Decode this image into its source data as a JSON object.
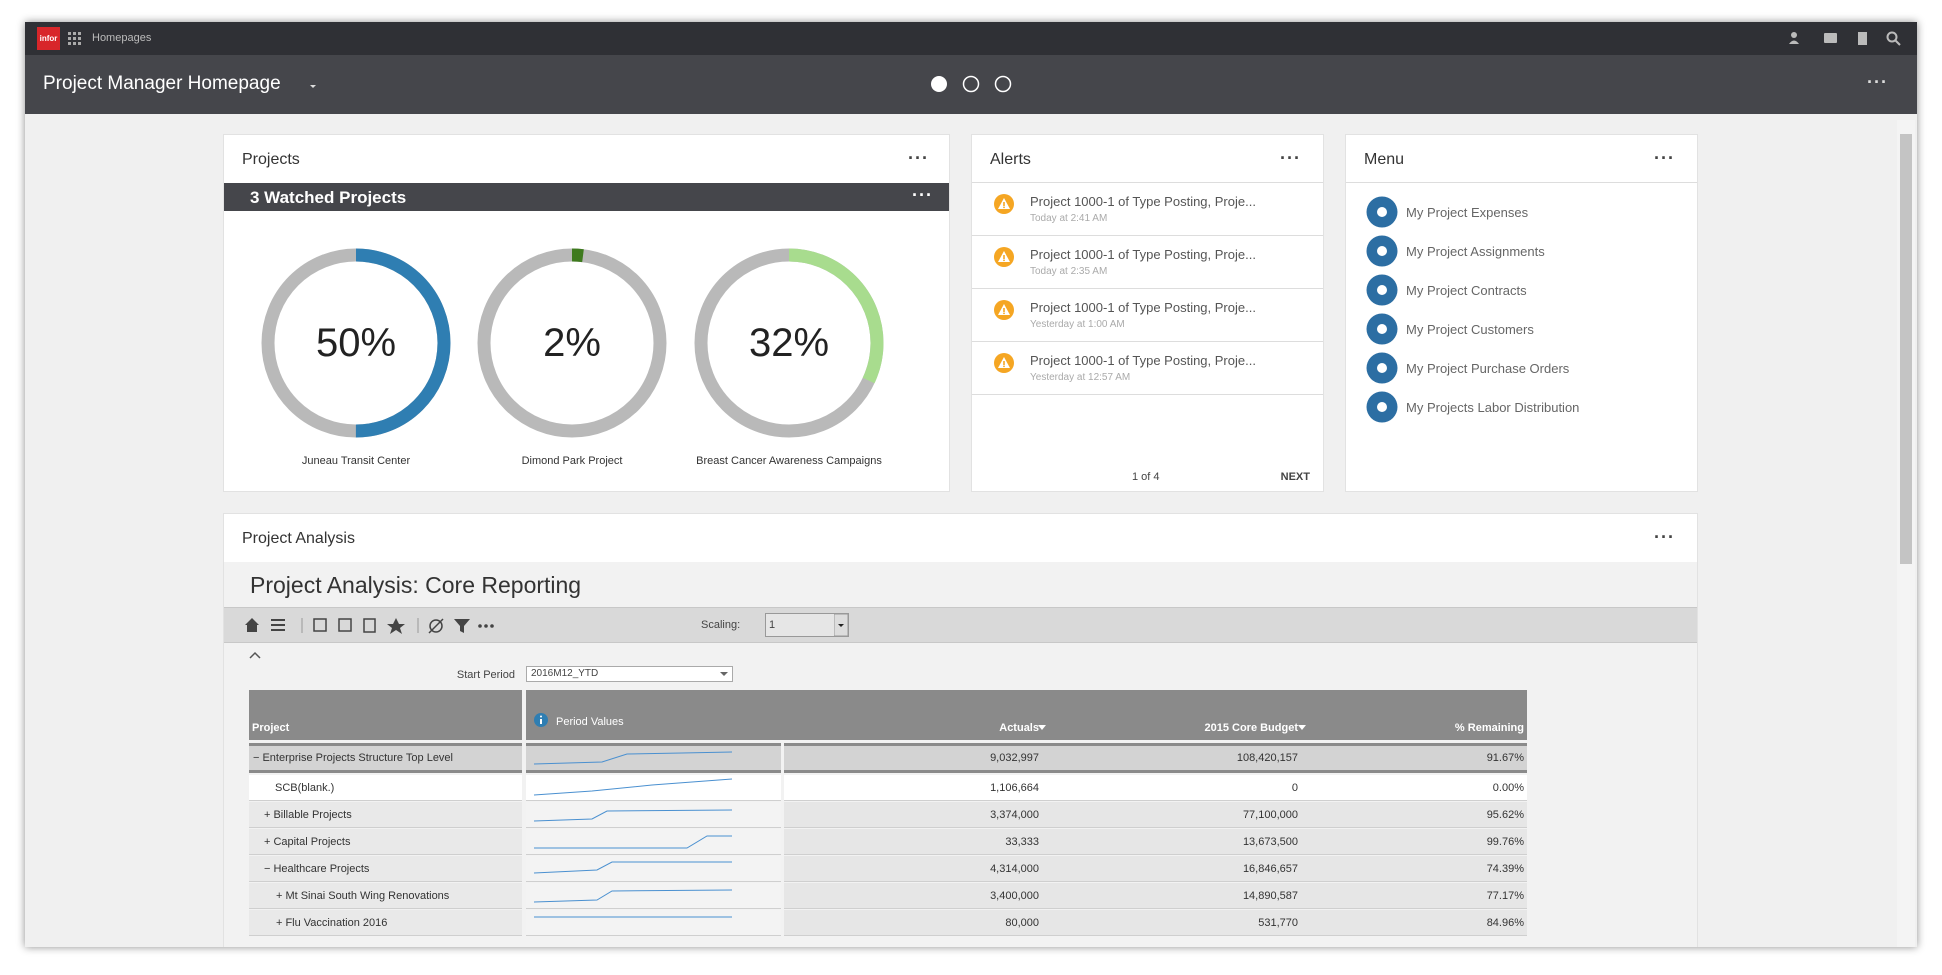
{
  "topbar": {
    "logo": "infor",
    "app": "Homepages"
  },
  "header": {
    "title": "Project Manager Homepage"
  },
  "projects_card": {
    "title": "Projects",
    "watched": "3 Watched Projects",
    "projects": [
      {
        "name": "Juneau Transit Center",
        "percent": {
          "value": 50,
          "label": "50%"
        },
        "color": "#2f7eb2"
      },
      {
        "name": "Dimond Park Project",
        "percent": {
          "value": 2,
          "label": "2%"
        },
        "color": "#3e7a1e"
      },
      {
        "name": "Breast Cancer Awareness Campaigns",
        "percent": {
          "value": 32,
          "label": "32%"
        },
        "color": "#a8dc8e"
      }
    ]
  },
  "alerts_card": {
    "title": "Alerts",
    "alerts": [
      {
        "text": "Project 1000-1 of Type Posting, Proje...",
        "time": "Today at 2:41 AM"
      },
      {
        "text": "Project 1000-1 of Type Posting, Proje...",
        "time": "Today at 2:35 AM"
      },
      {
        "text": "Project 1000-1 of Type Posting, Proje...",
        "time": "Yesterday at 1:00 AM"
      },
      {
        "text": "Project 1000-1 of Type Posting, Proje...",
        "time": "Yesterday at 12:57 AM"
      }
    ],
    "pager": "1 of 4",
    "next": "NEXT"
  },
  "menu_card": {
    "title": "Menu",
    "items": [
      "My Project Expenses",
      "My Project Assignments",
      "My Project Contracts",
      "My Project Customers",
      "My Project Purchase Orders",
      "My Projects Labor Distribution"
    ]
  },
  "analysis_card": {
    "title": "Project Analysis",
    "report_title": "Project Analysis: Core Reporting",
    "scaling_label": "Scaling:",
    "scaling_value": "1",
    "start_period_label": "Start Period",
    "start_period_value": "2016M12_YTD",
    "columns": [
      "Project",
      "Period Values",
      "Actuals",
      "2015 Core Budget",
      "% Remaining"
    ],
    "rows": [
      {
        "toggle": "−",
        "name": "Enterprise Projects Structure Top Level",
        "actuals": "9,032,997",
        "budget": "108,420,157",
        "remaining": "91.67%"
      },
      {
        "name": "SCB(blank.)",
        "actuals": "1,106,664",
        "budget": "0",
        "remaining": "0.00%"
      },
      {
        "toggle": "+",
        "name": "Billable Projects",
        "actuals": "3,374,000",
        "budget": "77,100,000",
        "remaining": "95.62%"
      },
      {
        "toggle": "+",
        "name": "Capital Projects",
        "actuals": "33,333",
        "budget": "13,673,500",
        "remaining": "99.76%"
      },
      {
        "toggle": "−",
        "name": "Healthcare Projects",
        "actuals": "4,314,000",
        "budget": "16,846,657",
        "remaining": "74.39%"
      },
      {
        "toggle": "+",
        "name": "Mt Sinai South Wing Renovations",
        "actuals": "3,400,000",
        "budget": "14,890,587",
        "remaining": "77.17%"
      },
      {
        "toggle": "+",
        "name": "Flu Vaccination 2016",
        "actuals": "80,000",
        "budget": "531,770",
        "remaining": "84.96%"
      }
    ]
  }
}
